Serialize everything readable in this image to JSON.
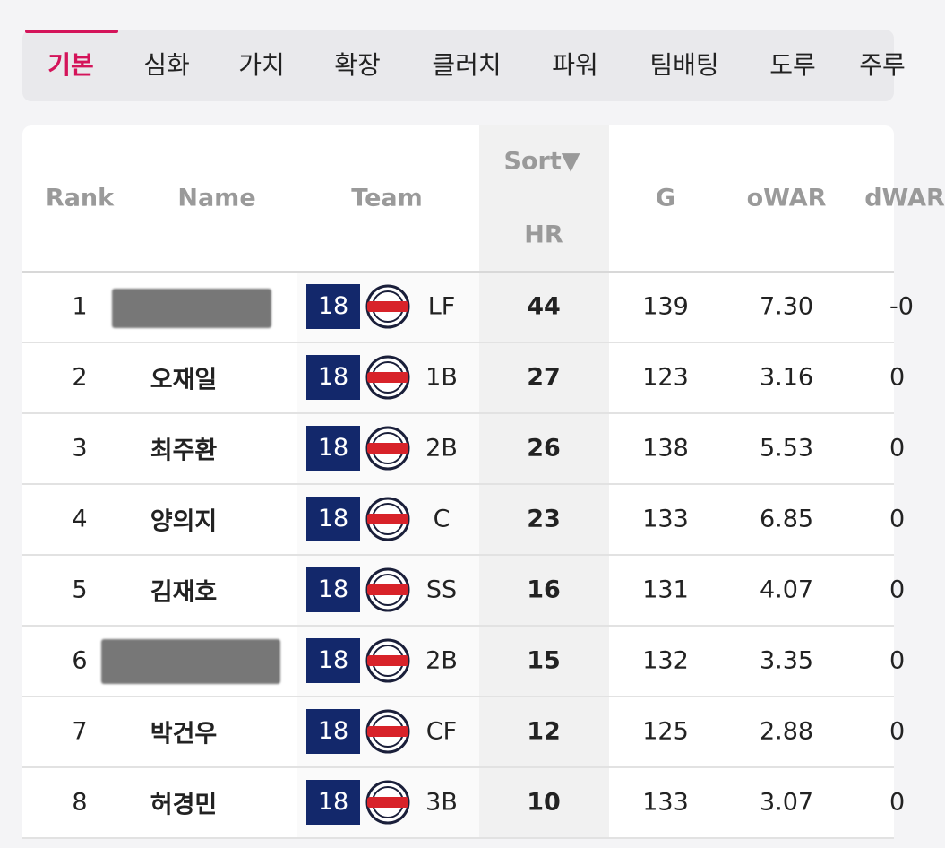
{
  "tabs": [
    "기본",
    "심화",
    "가치",
    "확장",
    "클러치",
    "파워",
    "팀배팅",
    "도루",
    "주루"
  ],
  "active_tab": 0,
  "table": {
    "headers": {
      "rank": "Rank",
      "name": "Name",
      "team": "Team",
      "sort": "Sort▼",
      "hr": "HR",
      "g": "G",
      "owar": "oWAR",
      "dwar": "dWAR"
    },
    "rows": [
      {
        "rank": "1",
        "name": null,
        "team": "18",
        "pos": "LF",
        "hr": "44",
        "g": "139",
        "owar": "7.30",
        "dwar": "-0"
      },
      {
        "rank": "2",
        "name": "오재일",
        "team": "18",
        "pos": "1B",
        "hr": "27",
        "g": "123",
        "owar": "3.16",
        "dwar": "0"
      },
      {
        "rank": "3",
        "name": "최주환",
        "team": "18",
        "pos": "2B",
        "hr": "26",
        "g": "138",
        "owar": "5.53",
        "dwar": "0"
      },
      {
        "rank": "4",
        "name": "양의지",
        "team": "18",
        "pos": "C",
        "hr": "23",
        "g": "133",
        "owar": "6.85",
        "dwar": "0"
      },
      {
        "rank": "5",
        "name": "김재호",
        "team": "18",
        "pos": "SS",
        "hr": "16",
        "g": "131",
        "owar": "4.07",
        "dwar": "0"
      },
      {
        "rank": "6",
        "name": null,
        "team": "18",
        "pos": "2B",
        "hr": "15",
        "g": "132",
        "owar": "3.35",
        "dwar": "0"
      },
      {
        "rank": "7",
        "name": "박건우",
        "team": "18",
        "pos": "CF",
        "hr": "12",
        "g": "125",
        "owar": "2.88",
        "dwar": "0"
      },
      {
        "rank": "8",
        "name": "허경민",
        "team": "18",
        "pos": "3B",
        "hr": "10",
        "g": "133",
        "owar": "3.07",
        "dwar": "0"
      }
    ]
  }
}
